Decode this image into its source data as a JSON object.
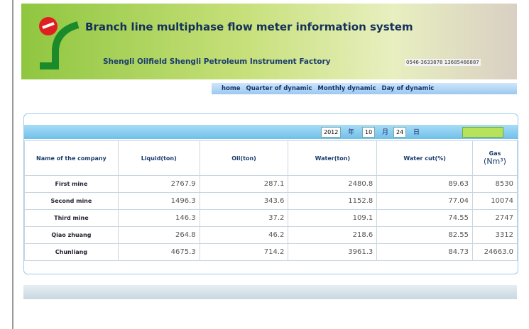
{
  "header": {
    "title": "Branch line multiphase flow meter information system",
    "subtitle": "Shengli Oilfield Shengli Petroleum Instrument Factory",
    "phone": "0546-3633878 13685466887"
  },
  "nav": [
    "home",
    "Quarter of dynamic",
    "Monthly dynamic",
    "Day of dynamic"
  ],
  "toolbar": {
    "year": "2012",
    "year_unit": "年",
    "month": "10",
    "month_unit": "月",
    "day": "24",
    "day_unit": "日"
  },
  "table": {
    "columns": [
      "Name of the company",
      "Liquid(ton)",
      "Oil(ton)",
      "Water(ton)",
      "Water cut(%)",
      "Gas"
    ],
    "gas_unit": "(Nm³)",
    "rows": [
      [
        "First mine",
        "2767.9",
        "287.1",
        "2480.8",
        "89.63",
        "8530"
      ],
      [
        "Second mine",
        "1496.3",
        "343.6",
        "1152.8",
        "77.04",
        "10074"
      ],
      [
        "Third mine",
        "146.3",
        "37.2",
        "109.1",
        "74.55",
        "2747"
      ],
      [
        "Qiao zhuang",
        "264.8",
        "46.2",
        "218.6",
        "82.55",
        "3312"
      ],
      [
        "Chunliang",
        "4675.3",
        "714.2",
        "3961.3",
        "84.73",
        "24663.0"
      ]
    ]
  }
}
